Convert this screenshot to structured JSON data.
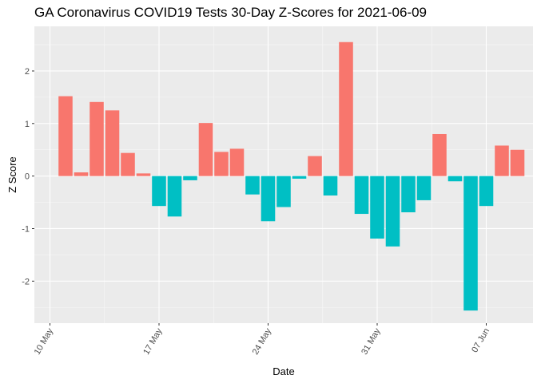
{
  "chart_data": {
    "type": "bar",
    "title": "GA Coronavirus COVID19 Tests 30-Day Z-Scores for 2021-06-09",
    "xlabel": "Date",
    "ylabel": "Z Score",
    "x_ticks": [
      {
        "date": "2021-05-10",
        "label": "10 May"
      },
      {
        "date": "2021-05-17",
        "label": "17 May"
      },
      {
        "date": "2021-05-24",
        "label": "24 May"
      },
      {
        "date": "2021-05-31",
        "label": "31 May"
      },
      {
        "date": "2021-06-07",
        "label": "07 Jun"
      }
    ],
    "y_ticks": [
      -2,
      -1,
      0,
      1,
      2
    ],
    "xlim": [
      "2021-05-09",
      "2021-06-10"
    ],
    "ylim": [
      -2.8,
      2.85
    ],
    "grid": true,
    "legend": "none",
    "colors": {
      "positive": "#F8766D",
      "negative": "#00BFC4"
    },
    "x": [
      "2021-05-11",
      "2021-05-12",
      "2021-05-13",
      "2021-05-14",
      "2021-05-15",
      "2021-05-16",
      "2021-05-17",
      "2021-05-18",
      "2021-05-19",
      "2021-05-20",
      "2021-05-21",
      "2021-05-22",
      "2021-05-23",
      "2021-05-24",
      "2021-05-25",
      "2021-05-26",
      "2021-05-27",
      "2021-05-28",
      "2021-05-29",
      "2021-05-30",
      "2021-05-31",
      "2021-06-01",
      "2021-06-02",
      "2021-06-03",
      "2021-06-04",
      "2021-06-05",
      "2021-06-06",
      "2021-06-07",
      "2021-06-08",
      "2021-06-09"
    ],
    "values": [
      1.52,
      0.07,
      1.41,
      1.25,
      0.44,
      0.05,
      -0.57,
      -0.77,
      -0.08,
      1.01,
      0.46,
      0.52,
      -0.35,
      -0.86,
      -0.59,
      -0.05,
      0.38,
      -0.37,
      2.55,
      -0.72,
      -1.19,
      -1.34,
      -0.69,
      -0.46,
      0.8,
      -0.1,
      -2.56,
      -0.57,
      0.58,
      0.5
    ]
  }
}
